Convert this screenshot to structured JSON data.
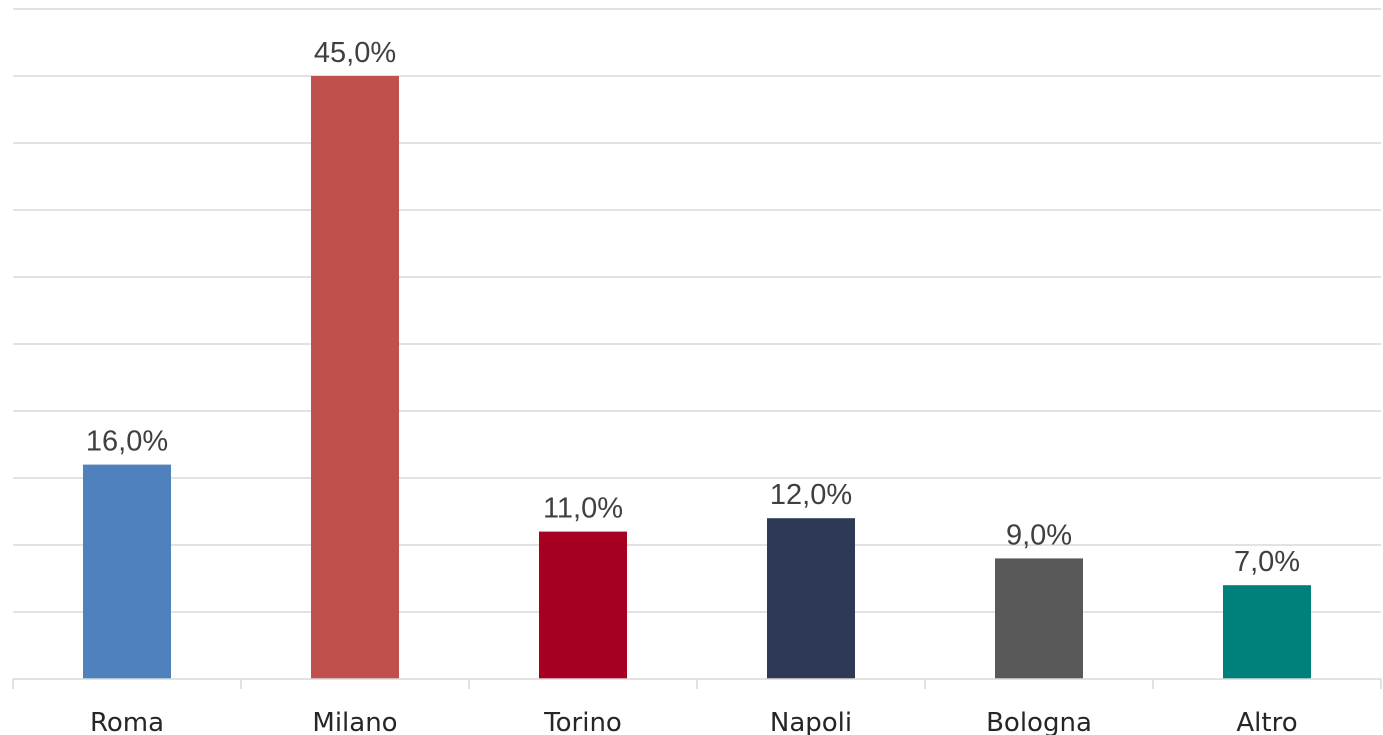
{
  "chart_data": {
    "type": "bar",
    "categories": [
      "Roma",
      "Milano",
      "Torino",
      "Napoli",
      "Bologna",
      "Altro"
    ],
    "values": [
      16.0,
      45.0,
      11.0,
      12.0,
      9.0,
      7.0
    ],
    "data_labels": [
      "16,0%",
      "45,0%",
      "11,0%",
      "12,0%",
      "9,0%",
      "7,0%"
    ],
    "colors": [
      "#4F81BD",
      "#C0504D",
      "#A50021",
      "#2E3A55",
      "#595959",
      "#00807A"
    ],
    "title": "",
    "xlabel": "",
    "ylabel": "",
    "ylim": [
      0,
      50
    ],
    "grid": true,
    "legend": "none"
  }
}
